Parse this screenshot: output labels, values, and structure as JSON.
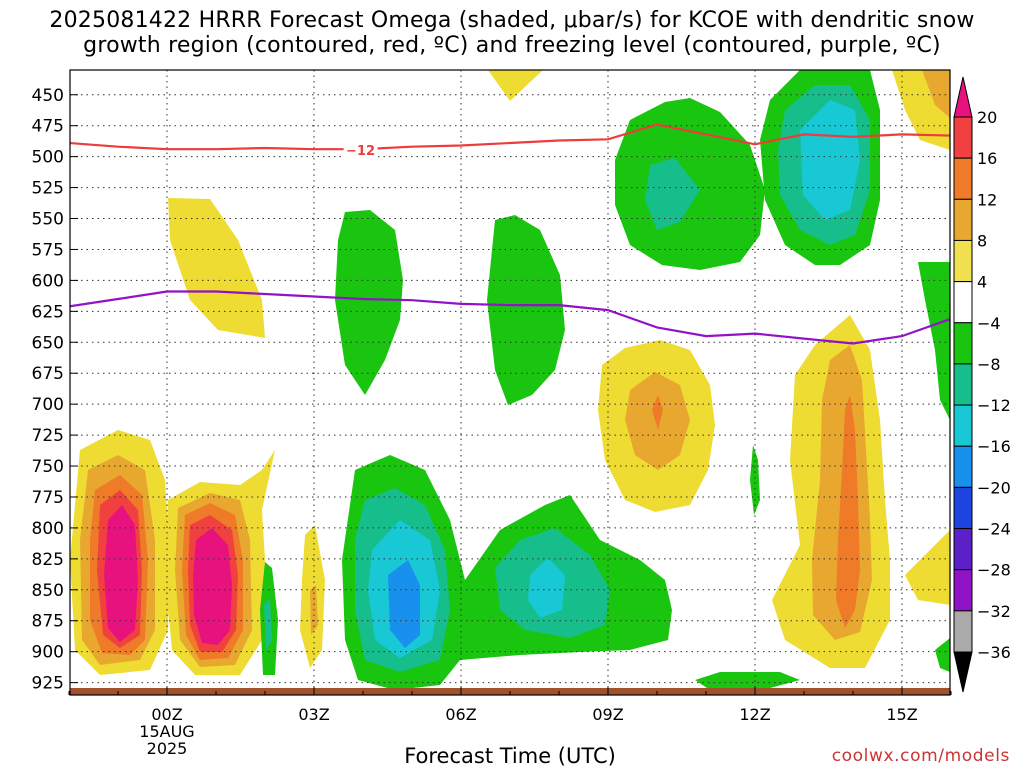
{
  "title": {
    "line1": "2025081422 HRRR Forecast Omega (shaded, μbar/s) for KCOE with dendritic snow",
    "line2": "growth region (contoured, red, ºC) and freezing level (contoured, purple, ºC)"
  },
  "credit": "coolwx.com/models",
  "chart_data": {
    "type": "heatmap",
    "title": "2025081422 HRRR Forecast Omega (shaded, μbar/s) for KCOE with dendritic snow growth region (contoured, red, ºC) and freezing level (contoured, purple, ºC)",
    "xlabel": "Forecast Time (UTC)",
    "ylabel": "",
    "x_hours_since_00Z": [
      -2,
      17.5
    ],
    "xlim_hours": [
      -2,
      16
    ],
    "ylim_hpa": [
      430,
      935
    ],
    "x_ticks": [
      {
        "hour": 0,
        "label": "00Z",
        "sub1": "15AUG",
        "sub2": "2025"
      },
      {
        "hour": 3,
        "label": "03Z"
      },
      {
        "hour": 6,
        "label": "06Z"
      },
      {
        "hour": 9,
        "label": "09Z"
      },
      {
        "hour": 12,
        "label": "12Z"
      },
      {
        "hour": 15,
        "label": "15Z"
      }
    ],
    "y_ticks": [
      450,
      475,
      500,
      525,
      550,
      575,
      600,
      625,
      650,
      675,
      700,
      725,
      750,
      775,
      800,
      825,
      850,
      875,
      900,
      925
    ],
    "grid": true,
    "colorbar": {
      "labels": [
        "20",
        "16",
        "12",
        "8",
        "4",
        "-4",
        "-8",
        "-12",
        "-16",
        "-20",
        "-24",
        "-28",
        "-32",
        "-36"
      ],
      "colors": [
        "#e8127f",
        "#f04040",
        "#ef7a28",
        "#e8a830",
        "#f0e050",
        "#ffffff",
        "#19c50f",
        "#16be8c",
        "#18c8d4",
        "#1891ee",
        "#1c44e0",
        "#5c20c8",
        "#9212c8",
        "#aaaaaa",
        "#000000"
      ]
    },
    "dgz_contour": {
      "label": "-12",
      "color": "#ee3b3b",
      "points": [
        [
          -2,
          489
        ],
        [
          -1,
          492
        ],
        [
          0,
          494
        ],
        [
          1,
          494
        ],
        [
          2,
          493
        ],
        [
          3,
          494
        ],
        [
          4,
          494
        ],
        [
          5,
          492
        ],
        [
          6,
          491
        ],
        [
          7,
          489
        ],
        [
          8,
          487
        ],
        [
          9,
          486
        ],
        [
          10,
          474
        ],
        [
          11,
          482
        ],
        [
          12,
          490
        ],
        [
          13,
          482
        ],
        [
          14,
          484
        ],
        [
          15,
          482
        ],
        [
          16,
          483
        ]
      ]
    },
    "freezing_level": {
      "color": "#9212c8",
      "points": [
        [
          -2,
          621
        ],
        [
          -1,
          615
        ],
        [
          0,
          609
        ],
        [
          1,
          609
        ],
        [
          2,
          611
        ],
        [
          3,
          613
        ],
        [
          4,
          615
        ],
        [
          5,
          616
        ],
        [
          6,
          619
        ],
        [
          7,
          620
        ],
        [
          8,
          620
        ],
        [
          9,
          624
        ],
        [
          10,
          638
        ],
        [
          11,
          645
        ],
        [
          12,
          643
        ],
        [
          13,
          647
        ],
        [
          14,
          651
        ],
        [
          15,
          645
        ],
        [
          16,
          631
        ]
      ]
    },
    "ground_level_hpa": 935
  }
}
